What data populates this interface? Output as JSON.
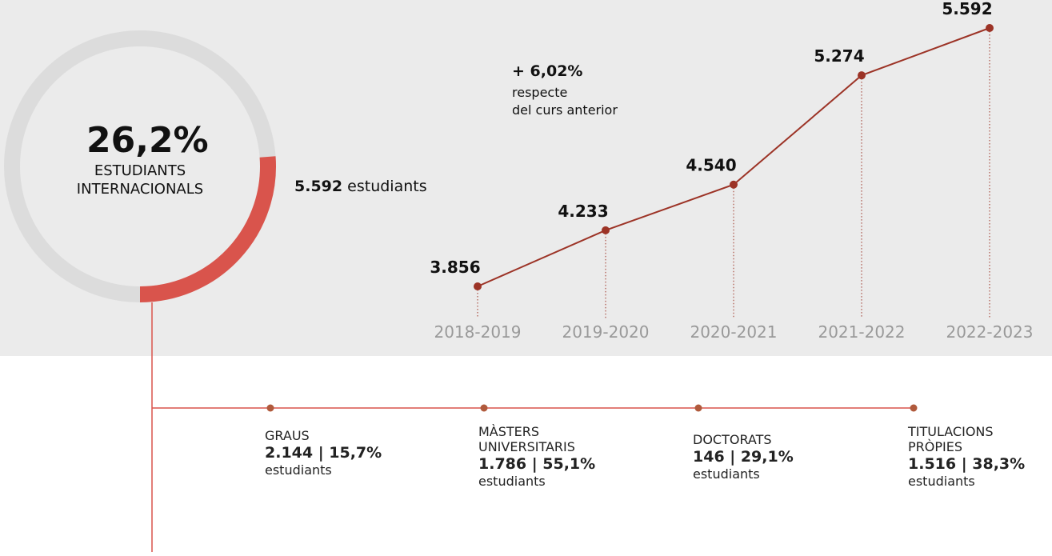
{
  "chart_data": [
    {
      "type": "donut",
      "value": 26.2,
      "value_label": "26,2%",
      "label": [
        "ESTUDIANTS",
        "INTERNACIONALS"
      ],
      "color": "#d9544c",
      "track_color": "#dcdcdc"
    },
    {
      "type": "line",
      "categories": [
        "2018-2019",
        "2019-2020",
        "2020-2021",
        "2021-2022",
        "2022-2023"
      ],
      "values": [
        3856,
        4233,
        4540,
        5274,
        5592
      ],
      "value_labels": [
        "3.856",
        "4.233",
        "4.540",
        "5.274",
        "5.592"
      ],
      "color": "#9c3326"
    }
  ],
  "total": {
    "figure": "5.592",
    "unit": "estudiants"
  },
  "note": {
    "change": "+ 6,02%",
    "text": [
      "respecte",
      "del curs anterior"
    ]
  },
  "breakdown": [
    {
      "name": "GRAUS",
      "figure": "2.144 | 15,7%",
      "unit": "estudiants"
    },
    {
      "name": "MÀSTERS UNIVERSITARIS",
      "figure": "1.786 | 55,1%",
      "unit": "estudiants"
    },
    {
      "name": "DOCTORATS",
      "figure": "146 | 29,1%",
      "unit": "estudiants"
    },
    {
      "name": "TITULACIONS PRÒPIES",
      "figure": "1.516 | 38,3%",
      "unit": "estudiants"
    }
  ]
}
